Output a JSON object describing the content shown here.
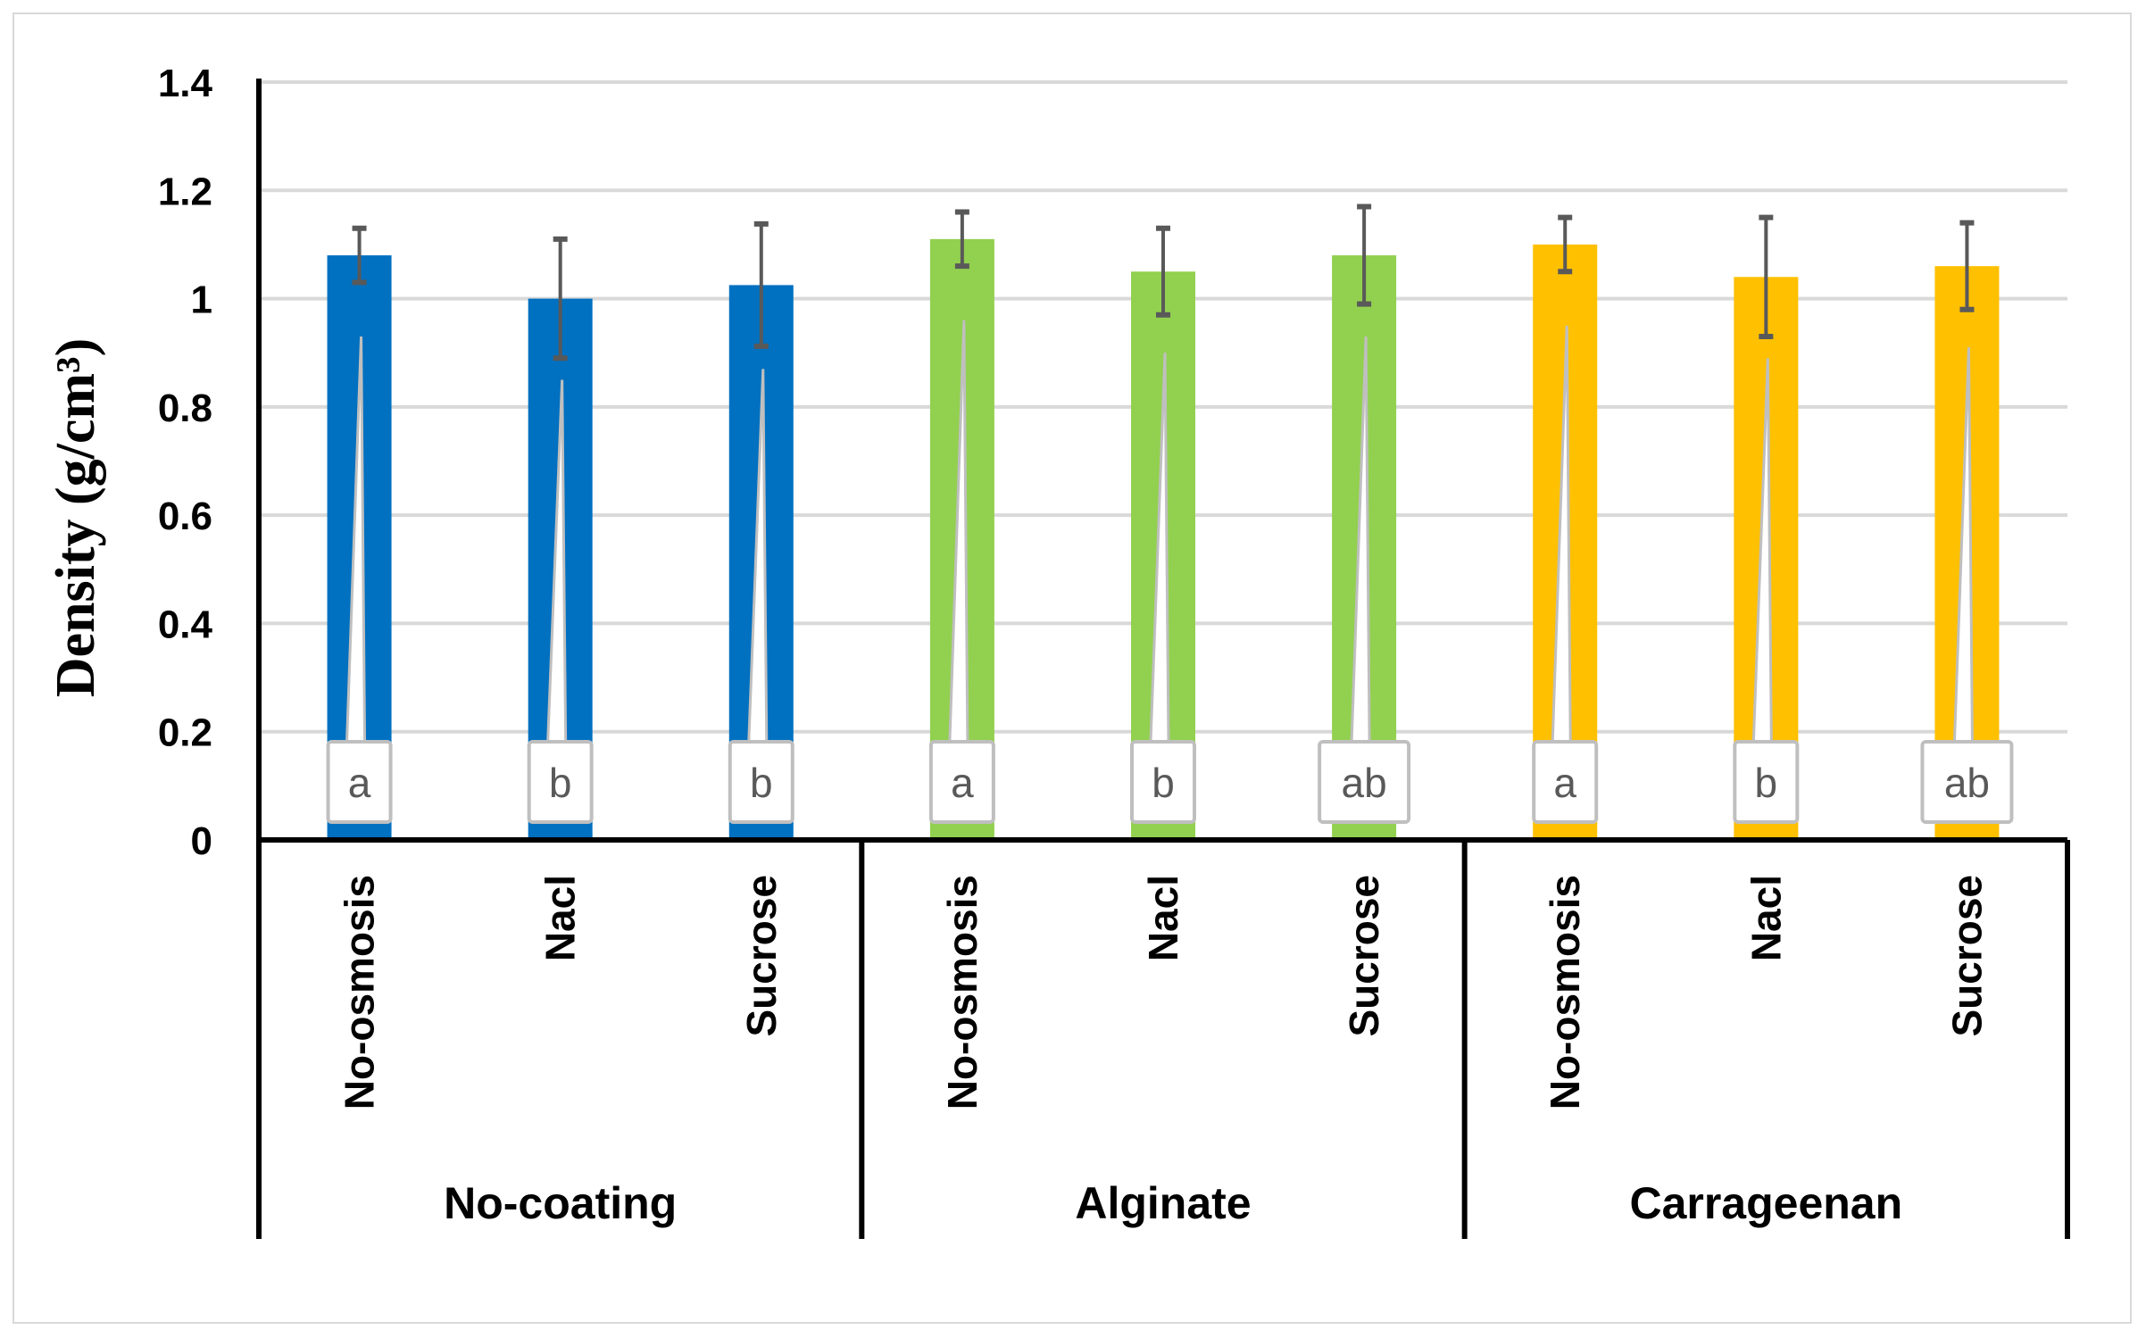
{
  "chart_data": {
    "type": "bar",
    "title": "",
    "xlabel": "",
    "ylabel": "Density (g/cm³)",
    "ylim": [
      0,
      1.4
    ],
    "yticks": [
      "0",
      "0.2",
      "0.4",
      "0.6",
      "0.8",
      "1",
      "1.2",
      "1.4"
    ],
    "grid": true,
    "legend": "none",
    "groups": [
      {
        "name": "No-coating",
        "color": "#0070c0"
      },
      {
        "name": "Alginate",
        "color": "#92d050"
      },
      {
        "name": "Carrageenan",
        "color": "#ffc000"
      }
    ],
    "categories": [
      "No-osmosis",
      "Nacl",
      "Sucrose"
    ],
    "bars": [
      {
        "group": "No-coating",
        "category": "No-osmosis",
        "value": 1.08,
        "error": 0.05,
        "letter": "a"
      },
      {
        "group": "No-coating",
        "category": "Nacl",
        "value": 1.0,
        "error": 0.11,
        "letter": "b"
      },
      {
        "group": "No-coating",
        "category": "Sucrose",
        "value": 1.025,
        "error": 0.113,
        "letter": "b"
      },
      {
        "group": "Alginate",
        "category": "No-osmosis",
        "value": 1.11,
        "error": 0.05,
        "letter": "a"
      },
      {
        "group": "Alginate",
        "category": "Nacl",
        "value": 1.05,
        "error": 0.08,
        "letter": "b"
      },
      {
        "group": "Alginate",
        "category": "Sucrose",
        "value": 1.08,
        "error": 0.09,
        "letter": "ab"
      },
      {
        "group": "Carrageenan",
        "category": "No-osmosis",
        "value": 1.1,
        "error": 0.05,
        "letter": "a"
      },
      {
        "group": "Carrageenan",
        "category": "Nacl",
        "value": 1.04,
        "error": 0.11,
        "letter": "b"
      },
      {
        "group": "Carrageenan",
        "category": "Sucrose",
        "value": 1.06,
        "error": 0.08,
        "letter": "ab"
      }
    ],
    "colors": {
      "grid": "#d9d9d9",
      "error_bar": "#595959",
      "label_box": "#bfbfbf"
    }
  }
}
